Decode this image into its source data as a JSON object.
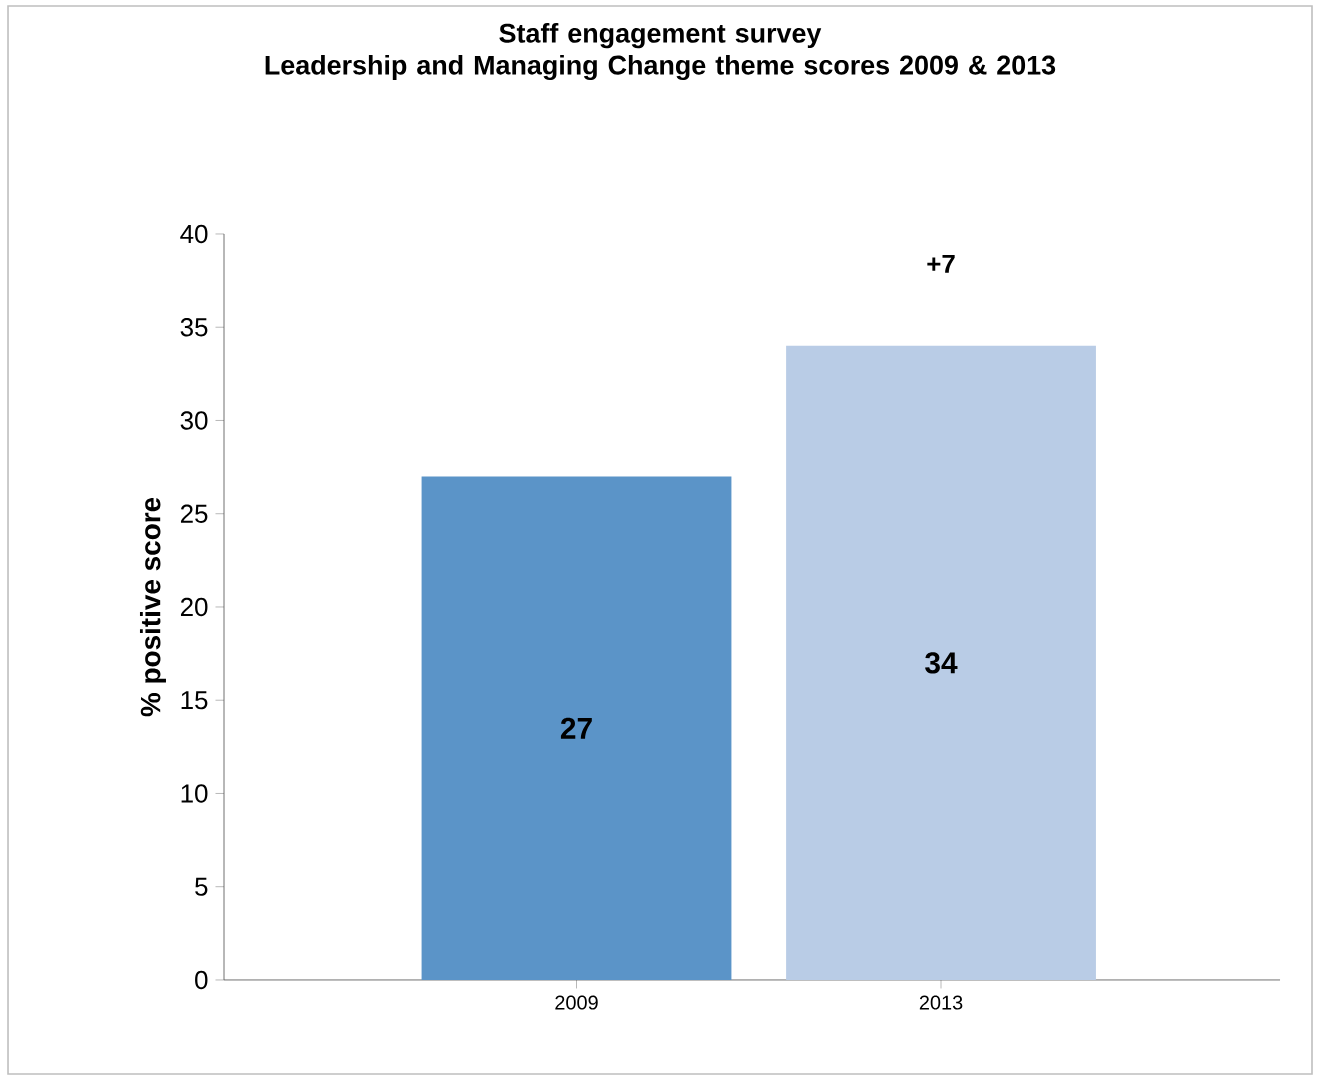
{
  "chart_data": {
    "type": "bar",
    "title": "Staff engagement survey",
    "subtitle": "Leadership and Managing Change theme scores 2009 & 2013",
    "ylabel": "% positive score",
    "categories": [
      "2009",
      "2013"
    ],
    "values": [
      27,
      34
    ],
    "colors": [
      "#5b94c8",
      "#b9cce6"
    ],
    "ylim": [
      0,
      40
    ],
    "yticks": [
      0,
      5,
      10,
      15,
      20,
      25,
      30,
      35,
      40
    ],
    "data_labels": true,
    "grid": false,
    "annotations": [
      "+7"
    ]
  }
}
